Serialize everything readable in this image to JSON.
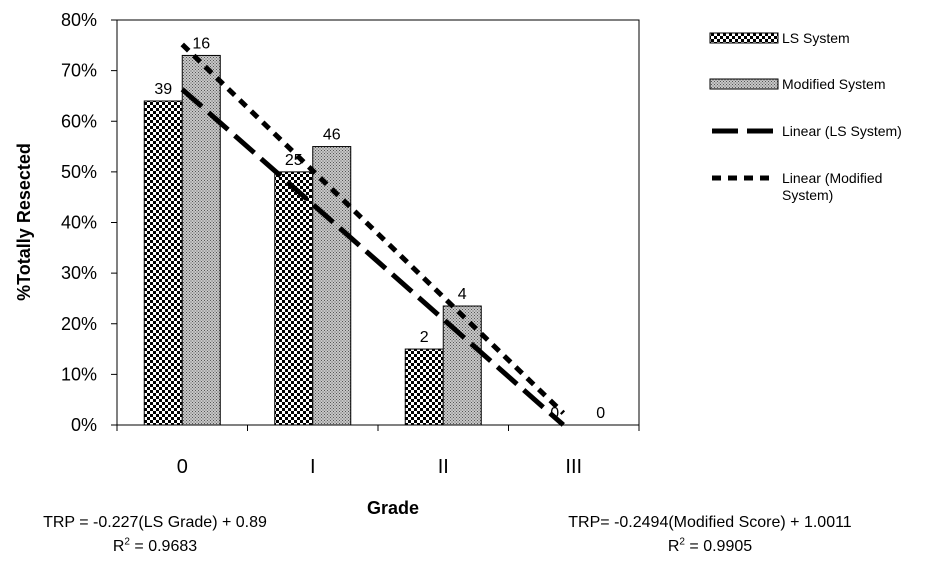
{
  "chart_data": {
    "type": "bar",
    "xlabel": "Grade",
    "ylabel": "%Totally Resected",
    "ylim": [
      0,
      0.8
    ],
    "y_ticks": [
      "0%",
      "10%",
      "20%",
      "30%",
      "40%",
      "50%",
      "60%",
      "70%",
      "80%"
    ],
    "categories": [
      "0",
      "I",
      "II",
      "III"
    ],
    "series": [
      {
        "name": "LS System",
        "values": [
          0.64,
          0.5,
          0.15,
          0.0
        ],
        "labels": [
          "39",
          "25",
          "2",
          "0"
        ],
        "fill": "checker"
      },
      {
        "name": "Modified System",
        "values": [
          0.73,
          0.55,
          0.235,
          0.0
        ],
        "labels": [
          "16",
          "46",
          "4",
          "0"
        ],
        "fill": "stipple"
      }
    ],
    "trendlines": [
      {
        "name": "Linear (LS System)",
        "slope": -0.227,
        "intercept": 0.89,
        "style": "long-dash"
      },
      {
        "name": "Linear (Modified System)",
        "slope": -0.2494,
        "intercept": 1.0011,
        "style": "dotted"
      }
    ],
    "legend": {
      "position": "right",
      "items": [
        "LS System",
        "Modified System",
        "Linear (LS System)",
        "Linear (Modified System)"
      ]
    },
    "grid": false
  },
  "equations": {
    "ls": {
      "line1": "TRP = -0.227(LS Grade) + 0.89",
      "r2_prefix": "R",
      "r2_sup": "2",
      "r2_value": " = 0.9683"
    },
    "modified": {
      "line1": "TRP= -0.2494(Modified Score) + 1.0011",
      "r2_prefix": "R",
      "r2_sup": "2",
      "r2_value": " = 0.9905"
    }
  },
  "colors": {
    "ink": "#000000",
    "stipple": "#9a9a9a",
    "background": "#ffffff"
  }
}
